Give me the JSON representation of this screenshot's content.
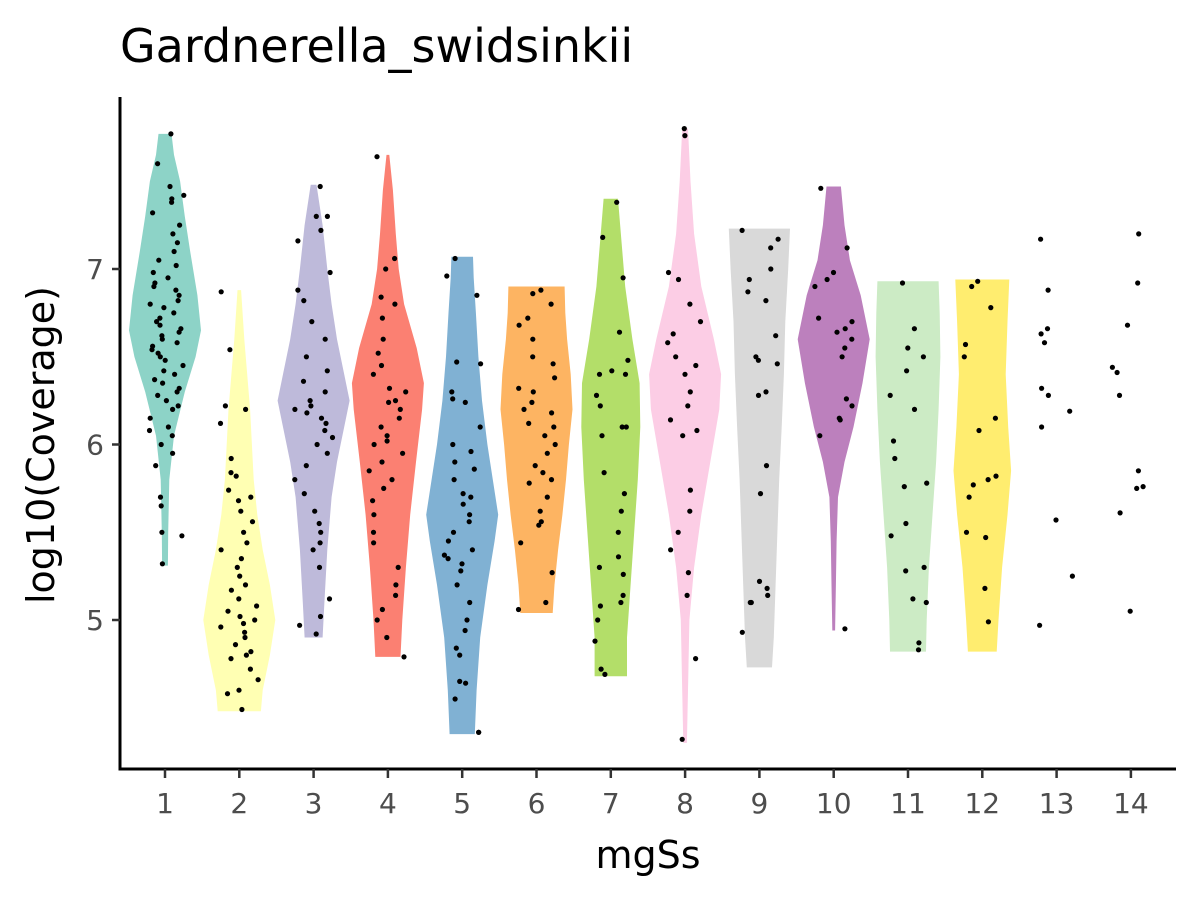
{
  "chart_data": {
    "type": "violin",
    "title": "Gardnerella_swidsinkii",
    "xlabel": "mgSs",
    "ylabel": "log10(Coverage)",
    "categories": [
      "1",
      "2",
      "3",
      "4",
      "5",
      "6",
      "7",
      "8",
      "9",
      "10",
      "11",
      "12",
      "13",
      "14"
    ],
    "yticks": [
      5,
      6,
      7
    ],
    "ylim": [
      4.15,
      7.95
    ],
    "grid": false,
    "legend": "none",
    "colors": [
      "#8dd3c7",
      "#ffffb3",
      "#bebada",
      "#fb8072",
      "#80b1d3",
      "#fdb462",
      "#b3de69",
      "#fccde5",
      "#d9d9d9",
      "#bc80bd",
      "#ccebc5",
      "#ffed6f"
    ],
    "groups": [
      {
        "category": "1",
        "min": 5.31,
        "max": 7.77,
        "shape": [
          [
            5.31,
            0.08
          ],
          [
            5.5,
            0.09
          ],
          [
            5.8,
            0.12
          ],
          [
            6.05,
            0.25
          ],
          [
            6.3,
            0.55
          ],
          [
            6.5,
            0.85
          ],
          [
            6.65,
            1.0
          ],
          [
            6.85,
            0.9
          ],
          [
            7.1,
            0.7
          ],
          [
            7.3,
            0.55
          ],
          [
            7.5,
            0.42
          ],
          [
            7.65,
            0.25
          ],
          [
            7.77,
            0.18
          ]
        ],
        "points": [
          7.77,
          7.6,
          7.47,
          7.42,
          7.4,
          7.38,
          7.32,
          7.25,
          7.2,
          7.15,
          7.1,
          7.05,
          7.02,
          6.98,
          6.95,
          6.92,
          6.9,
          6.88,
          6.85,
          6.82,
          6.8,
          6.78,
          6.75,
          6.72,
          6.7,
          6.68,
          6.66,
          6.64,
          6.62,
          6.6,
          6.58,
          6.56,
          6.54,
          6.52,
          6.5,
          6.48,
          6.45,
          6.42,
          6.4,
          6.37,
          6.35,
          6.32,
          6.3,
          6.28,
          6.25,
          6.22,
          6.2,
          6.15,
          6.1,
          6.08,
          6.05,
          6.0,
          5.95,
          5.88,
          5.7,
          5.65,
          5.5,
          5.48,
          5.32
        ]
      },
      {
        "category": "2",
        "min": 4.48,
        "max": 6.88,
        "shape": [
          [
            4.48,
            0.6
          ],
          [
            4.6,
            0.65
          ],
          [
            4.8,
            0.85
          ],
          [
            5.0,
            1.0
          ],
          [
            5.2,
            0.85
          ],
          [
            5.4,
            0.65
          ],
          [
            5.6,
            0.5
          ],
          [
            5.8,
            0.4
          ],
          [
            6.0,
            0.35
          ],
          [
            6.2,
            0.3
          ],
          [
            6.4,
            0.22
          ],
          [
            6.6,
            0.14
          ],
          [
            6.88,
            0.05
          ]
        ],
        "points": [
          6.87,
          6.54,
          6.22,
          6.2,
          6.12,
          5.92,
          5.84,
          5.82,
          5.74,
          5.7,
          5.68,
          5.62,
          5.56,
          5.5,
          5.44,
          5.4,
          5.35,
          5.3,
          5.25,
          5.2,
          5.17,
          5.12,
          5.08,
          5.05,
          5.02,
          5.0,
          4.98,
          4.96,
          4.93,
          4.9,
          4.86,
          4.82,
          4.8,
          4.78,
          4.72,
          4.66,
          4.6,
          4.58,
          4.49
        ]
      },
      {
        "category": "3",
        "min": 4.9,
        "max": 7.48,
        "shape": [
          [
            4.9,
            0.25
          ],
          [
            5.1,
            0.3
          ],
          [
            5.4,
            0.38
          ],
          [
            5.7,
            0.5
          ],
          [
            5.9,
            0.65
          ],
          [
            6.1,
            0.85
          ],
          [
            6.25,
            1.0
          ],
          [
            6.4,
            0.85
          ],
          [
            6.6,
            0.65
          ],
          [
            6.8,
            0.5
          ],
          [
            7.0,
            0.38
          ],
          [
            7.25,
            0.25
          ],
          [
            7.48,
            0.08
          ]
        ],
        "points": [
          7.47,
          7.3,
          7.3,
          7.22,
          7.16,
          6.98,
          6.88,
          6.82,
          6.7,
          6.6,
          6.5,
          6.42,
          6.36,
          6.3,
          6.25,
          6.22,
          6.2,
          6.18,
          6.15,
          6.12,
          6.08,
          6.04,
          6.0,
          5.95,
          5.88,
          5.8,
          5.72,
          5.62,
          5.55,
          5.5,
          5.44,
          5.4,
          5.3,
          5.12,
          5.02,
          4.97,
          4.92
        ]
      },
      {
        "category": "4",
        "min": 4.79,
        "max": 7.65,
        "shape": [
          [
            4.79,
            0.35
          ],
          [
            5.0,
            0.4
          ],
          [
            5.3,
            0.5
          ],
          [
            5.6,
            0.62
          ],
          [
            5.9,
            0.78
          ],
          [
            6.2,
            0.95
          ],
          [
            6.35,
            1.0
          ],
          [
            6.55,
            0.8
          ],
          [
            6.8,
            0.45
          ],
          [
            7.0,
            0.3
          ],
          [
            7.2,
            0.22
          ],
          [
            7.45,
            0.14
          ],
          [
            7.65,
            0.04
          ]
        ],
        "points": [
          7.64,
          7.06,
          7.0,
          6.84,
          6.8,
          6.72,
          6.6,
          6.52,
          6.45,
          6.4,
          6.32,
          6.3,
          6.25,
          6.24,
          6.2,
          6.15,
          6.1,
          6.05,
          6.02,
          6.0,
          5.95,
          5.9,
          5.85,
          5.8,
          5.75,
          5.68,
          5.6,
          5.5,
          5.44,
          5.3,
          5.2,
          5.14,
          5.06,
          5.0,
          4.9,
          4.79
        ]
      },
      {
        "category": "5",
        "min": 4.35,
        "max": 7.07,
        "shape": [
          [
            4.35,
            0.35
          ],
          [
            4.6,
            0.4
          ],
          [
            4.9,
            0.5
          ],
          [
            5.2,
            0.7
          ],
          [
            5.45,
            0.9
          ],
          [
            5.6,
            1.0
          ],
          [
            5.8,
            0.85
          ],
          [
            6.0,
            0.7
          ],
          [
            6.25,
            0.55
          ],
          [
            6.5,
            0.45
          ],
          [
            6.75,
            0.38
          ],
          [
            6.95,
            0.32
          ],
          [
            7.07,
            0.3
          ]
        ],
        "points": [
          7.06,
          6.96,
          6.85,
          6.47,
          6.46,
          6.3,
          6.26,
          6.24,
          6.1,
          6.0,
          5.96,
          5.9,
          5.86,
          5.8,
          5.72,
          5.7,
          5.66,
          5.6,
          5.56,
          5.5,
          5.45,
          5.4,
          5.37,
          5.35,
          5.32,
          5.28,
          5.2,
          5.1,
          5.0,
          4.94,
          4.84,
          4.8,
          4.65,
          4.64,
          4.55,
          4.36,
          4.36
        ]
      },
      {
        "category": "6",
        "min": 5.04,
        "max": 6.9,
        "shape": [
          [
            5.04,
            0.45
          ],
          [
            5.2,
            0.5
          ],
          [
            5.4,
            0.6
          ],
          [
            5.6,
            0.72
          ],
          [
            5.8,
            0.82
          ],
          [
            6.0,
            0.9
          ],
          [
            6.2,
            1.0
          ],
          [
            6.4,
            0.95
          ],
          [
            6.6,
            0.85
          ],
          [
            6.75,
            0.8
          ],
          [
            6.9,
            0.78
          ]
        ],
        "points": [
          6.88,
          6.86,
          6.8,
          6.72,
          6.68,
          6.6,
          6.5,
          6.46,
          6.38,
          6.32,
          6.3,
          6.24,
          6.2,
          6.18,
          6.12,
          6.1,
          6.05,
          6.0,
          5.95,
          5.88,
          5.84,
          5.8,
          5.78,
          5.7,
          5.62,
          5.56,
          5.54,
          5.44,
          5.27,
          5.1,
          5.06
        ]
      },
      {
        "category": "7",
        "min": 4.68,
        "max": 7.4,
        "shape": [
          [
            4.68,
            0.45
          ],
          [
            4.9,
            0.45
          ],
          [
            5.2,
            0.55
          ],
          [
            5.5,
            0.65
          ],
          [
            5.8,
            0.75
          ],
          [
            6.1,
            0.82
          ],
          [
            6.35,
            0.8
          ],
          [
            6.6,
            0.6
          ],
          [
            6.9,
            0.4
          ],
          [
            7.15,
            0.3
          ],
          [
            7.4,
            0.2
          ]
        ],
        "points": [
          7.38,
          7.18,
          6.95,
          6.64,
          6.48,
          6.42,
          6.4,
          6.4,
          6.28,
          6.22,
          6.1,
          6.1,
          6.05,
          5.84,
          5.72,
          5.62,
          5.5,
          5.36,
          5.3,
          5.26,
          5.14,
          5.1,
          5.08,
          5.0,
          4.88,
          4.72,
          4.69
        ]
      },
      {
        "category": "8",
        "min": 4.3,
        "max": 7.8,
        "shape": [
          [
            4.3,
            0.05
          ],
          [
            4.6,
            0.08
          ],
          [
            5.0,
            0.12
          ],
          [
            5.3,
            0.25
          ],
          [
            5.6,
            0.45
          ],
          [
            5.9,
            0.7
          ],
          [
            6.2,
            0.95
          ],
          [
            6.4,
            1.0
          ],
          [
            6.6,
            0.8
          ],
          [
            6.9,
            0.45
          ],
          [
            7.2,
            0.25
          ],
          [
            7.5,
            0.15
          ],
          [
            7.8,
            0.08
          ]
        ],
        "points": [
          7.8,
          7.76,
          6.98,
          6.94,
          6.8,
          6.7,
          6.63,
          6.58,
          6.5,
          6.45,
          6.4,
          6.3,
          6.22,
          6.14,
          6.08,
          6.05,
          5.74,
          5.62,
          5.5,
          5.4,
          5.27,
          5.14,
          4.78,
          4.32
        ]
      },
      {
        "category": "9",
        "min": 4.73,
        "max": 7.23,
        "shape": [
          [
            4.73,
            0.35
          ],
          [
            4.9,
            0.4
          ],
          [
            5.2,
            0.45
          ],
          [
            5.5,
            0.5
          ],
          [
            5.8,
            0.55
          ],
          [
            6.1,
            0.62
          ],
          [
            6.4,
            0.68
          ],
          [
            6.7,
            0.72
          ],
          [
            7.0,
            0.8
          ],
          [
            7.23,
            0.85
          ]
        ],
        "points": [
          7.22,
          7.17,
          7.12,
          7.0,
          6.94,
          6.87,
          6.82,
          6.62,
          6.5,
          6.48,
          6.46,
          6.3,
          6.28,
          5.88,
          5.72,
          5.22,
          5.18,
          5.14,
          5.1,
          5.1,
          4.93
        ]
      },
      {
        "category": "10",
        "min": 4.94,
        "max": 7.47,
        "shape": [
          [
            4.94,
            0.04
          ],
          [
            5.2,
            0.06
          ],
          [
            5.45,
            0.08
          ],
          [
            5.7,
            0.12
          ],
          [
            5.9,
            0.3
          ],
          [
            6.1,
            0.55
          ],
          [
            6.35,
            0.8
          ],
          [
            6.6,
            1.0
          ],
          [
            6.85,
            0.75
          ],
          [
            7.05,
            0.45
          ],
          [
            7.25,
            0.3
          ],
          [
            7.47,
            0.2
          ]
        ],
        "points": [
          7.46,
          7.12,
          6.98,
          6.94,
          6.9,
          6.72,
          6.7,
          6.66,
          6.64,
          6.6,
          6.55,
          6.5,
          6.26,
          6.22,
          6.15,
          6.14,
          6.05,
          4.95
        ]
      },
      {
        "category": "11",
        "min": 4.82,
        "max": 6.93,
        "shape": [
          [
            4.82,
            0.5
          ],
          [
            5.0,
            0.52
          ],
          [
            5.3,
            0.58
          ],
          [
            5.6,
            0.68
          ],
          [
            5.9,
            0.78
          ],
          [
            6.2,
            0.85
          ],
          [
            6.5,
            0.9
          ],
          [
            6.75,
            0.88
          ],
          [
            6.93,
            0.85
          ]
        ],
        "points": [
          6.92,
          6.66,
          6.55,
          6.5,
          6.42,
          6.28,
          6.2,
          6.02,
          5.92,
          5.78,
          5.76,
          5.55,
          5.48,
          5.3,
          5.28,
          5.12,
          5.1,
          4.87,
          4.83
        ]
      },
      {
        "category": "12",
        "min": 4.82,
        "max": 6.94,
        "shape": [
          [
            4.82,
            0.4
          ],
          [
            5.0,
            0.45
          ],
          [
            5.3,
            0.55
          ],
          [
            5.6,
            0.7
          ],
          [
            5.85,
            0.8
          ],
          [
            6.1,
            0.72
          ],
          [
            6.4,
            0.65
          ],
          [
            6.7,
            0.7
          ],
          [
            6.94,
            0.75
          ]
        ],
        "points": [
          6.93,
          6.9,
          6.78,
          6.57,
          6.5,
          6.15,
          6.08,
          5.82,
          5.8,
          5.77,
          5.7,
          5.5,
          5.47,
          5.18,
          4.99
        ]
      },
      {
        "category": "13",
        "min": 4.97,
        "max": 7.17,
        "shape": [],
        "points": [
          7.17,
          6.88,
          6.66,
          6.63,
          6.58,
          6.32,
          6.28,
          6.19,
          6.1,
          5.57,
          5.25,
          4.97
        ]
      },
      {
        "category": "14",
        "min": 5.05,
        "max": 7.2,
        "shape": [],
        "points": [
          7.2,
          6.92,
          6.68,
          6.44,
          6.41,
          6.28,
          5.85,
          5.76,
          5.75,
          5.61,
          5.05
        ]
      }
    ]
  }
}
